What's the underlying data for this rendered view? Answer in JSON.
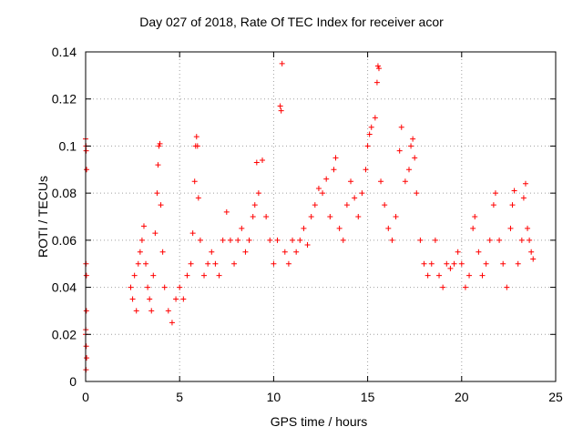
{
  "chart_data": {
    "type": "scatter",
    "title": "Day 027 of 2018, Rate Of TEC Index for receiver acor",
    "xlabel": "GPS time / hours",
    "ylabel": "ROTI / TECUs",
    "xlim": [
      0,
      25
    ],
    "ylim": [
      0,
      0.14
    ],
    "xticks": [
      0,
      5,
      10,
      15,
      20,
      25
    ],
    "yticks": [
      0,
      0.02,
      0.04,
      0.06,
      0.08,
      0.1,
      0.12,
      0.14
    ],
    "xtick_labels": [
      "0",
      "5",
      "10",
      "15",
      "20",
      "25"
    ],
    "ytick_labels": [
      "0",
      "0.02",
      "0.04",
      "0.06",
      "0.08",
      "0.1",
      "0.12",
      "0.14"
    ],
    "grid": true,
    "marker": "+",
    "color": "#ff0000",
    "series": [
      {
        "points": [
          [
            0.0,
            0.103
          ],
          [
            0.02,
            0.1
          ],
          [
            0.03,
            0.098
          ],
          [
            0.05,
            0.09
          ],
          [
            0.02,
            0.05
          ],
          [
            0.04,
            0.045
          ],
          [
            0.0,
            0.02
          ],
          [
            0.03,
            0.015
          ],
          [
            0.05,
            0.01
          ],
          [
            0.02,
            0.005
          ],
          [
            0.04,
            0.03
          ],
          [
            0.01,
            0.022
          ],
          [
            2.4,
            0.04
          ],
          [
            2.5,
            0.035
          ],
          [
            2.6,
            0.045
          ],
          [
            2.7,
            0.03
          ],
          [
            2.8,
            0.05
          ],
          [
            2.9,
            0.055
          ],
          [
            3.0,
            0.06
          ],
          [
            3.1,
            0.066
          ],
          [
            3.2,
            0.05
          ],
          [
            3.3,
            0.04
          ],
          [
            3.4,
            0.035
          ],
          [
            3.5,
            0.03
          ],
          [
            3.6,
            0.045
          ],
          [
            3.7,
            0.063
          ],
          [
            3.8,
            0.08
          ],
          [
            3.85,
            0.092
          ],
          [
            3.9,
            0.1
          ],
          [
            3.95,
            0.101
          ],
          [
            4.0,
            0.075
          ],
          [
            4.1,
            0.055
          ],
          [
            4.2,
            0.04
          ],
          [
            4.4,
            0.03
          ],
          [
            4.6,
            0.025
          ],
          [
            4.8,
            0.035
          ],
          [
            5.0,
            0.04
          ],
          [
            5.2,
            0.035
          ],
          [
            5.4,
            0.045
          ],
          [
            5.6,
            0.05
          ],
          [
            5.7,
            0.063
          ],
          [
            5.8,
            0.085
          ],
          [
            5.85,
            0.1
          ],
          [
            5.9,
            0.104
          ],
          [
            5.95,
            0.1
          ],
          [
            6.0,
            0.078
          ],
          [
            6.1,
            0.06
          ],
          [
            6.3,
            0.045
          ],
          [
            6.5,
            0.05
          ],
          [
            6.7,
            0.055
          ],
          [
            6.9,
            0.05
          ],
          [
            7.1,
            0.045
          ],
          [
            7.3,
            0.06
          ],
          [
            7.5,
            0.072
          ],
          [
            7.7,
            0.06
          ],
          [
            7.9,
            0.05
          ],
          [
            8.1,
            0.06
          ],
          [
            8.3,
            0.065
          ],
          [
            8.5,
            0.055
          ],
          [
            8.7,
            0.06
          ],
          [
            8.9,
            0.07
          ],
          [
            9.0,
            0.075
          ],
          [
            9.1,
            0.093
          ],
          [
            9.2,
            0.08
          ],
          [
            9.4,
            0.094
          ],
          [
            9.6,
            0.07
          ],
          [
            9.8,
            0.06
          ],
          [
            10.0,
            0.05
          ],
          [
            10.2,
            0.06
          ],
          [
            10.35,
            0.117
          ],
          [
            10.4,
            0.115
          ],
          [
            10.45,
            0.135
          ],
          [
            10.6,
            0.055
          ],
          [
            10.8,
            0.05
          ],
          [
            11.0,
            0.06
          ],
          [
            11.2,
            0.055
          ],
          [
            11.4,
            0.06
          ],
          [
            11.6,
            0.065
          ],
          [
            11.8,
            0.058
          ],
          [
            12.0,
            0.07
          ],
          [
            12.2,
            0.075
          ],
          [
            12.4,
            0.082
          ],
          [
            12.6,
            0.08
          ],
          [
            12.8,
            0.086
          ],
          [
            13.0,
            0.07
          ],
          [
            13.2,
            0.09
          ],
          [
            13.3,
            0.095
          ],
          [
            13.5,
            0.065
          ],
          [
            13.7,
            0.06
          ],
          [
            13.9,
            0.075
          ],
          [
            14.1,
            0.085
          ],
          [
            14.3,
            0.078
          ],
          [
            14.5,
            0.07
          ],
          [
            14.7,
            0.08
          ],
          [
            14.9,
            0.09
          ],
          [
            15.0,
            0.1
          ],
          [
            15.1,
            0.105
          ],
          [
            15.2,
            0.108
          ],
          [
            15.4,
            0.112
          ],
          [
            15.5,
            0.127
          ],
          [
            15.55,
            0.134
          ],
          [
            15.6,
            0.133
          ],
          [
            15.7,
            0.085
          ],
          [
            15.9,
            0.075
          ],
          [
            16.1,
            0.065
          ],
          [
            16.3,
            0.06
          ],
          [
            16.5,
            0.07
          ],
          [
            16.7,
            0.098
          ],
          [
            16.8,
            0.108
          ],
          [
            17.0,
            0.085
          ],
          [
            17.2,
            0.09
          ],
          [
            17.3,
            0.1
          ],
          [
            17.4,
            0.103
          ],
          [
            17.5,
            0.095
          ],
          [
            17.6,
            0.08
          ],
          [
            17.8,
            0.06
          ],
          [
            18.0,
            0.05
          ],
          [
            18.2,
            0.045
          ],
          [
            18.4,
            0.05
          ],
          [
            18.6,
            0.06
          ],
          [
            18.8,
            0.045
          ],
          [
            19.0,
            0.04
          ],
          [
            19.2,
            0.05
          ],
          [
            19.4,
            0.048
          ],
          [
            19.6,
            0.05
          ],
          [
            19.8,
            0.055
          ],
          [
            20.0,
            0.05
          ],
          [
            20.2,
            0.04
          ],
          [
            20.4,
            0.045
          ],
          [
            20.6,
            0.065
          ],
          [
            20.7,
            0.07
          ],
          [
            20.9,
            0.055
          ],
          [
            21.1,
            0.045
          ],
          [
            21.3,
            0.05
          ],
          [
            21.5,
            0.06
          ],
          [
            21.7,
            0.075
          ],
          [
            21.8,
            0.08
          ],
          [
            22.0,
            0.06
          ],
          [
            22.2,
            0.05
          ],
          [
            22.4,
            0.04
          ],
          [
            22.6,
            0.065
          ],
          [
            22.7,
            0.075
          ],
          [
            22.8,
            0.081
          ],
          [
            23.0,
            0.05
          ],
          [
            23.2,
            0.06
          ],
          [
            23.3,
            0.078
          ],
          [
            23.4,
            0.084
          ],
          [
            23.5,
            0.065
          ],
          [
            23.6,
            0.06
          ],
          [
            23.7,
            0.055
          ],
          [
            23.8,
            0.052
          ]
        ]
      }
    ]
  }
}
